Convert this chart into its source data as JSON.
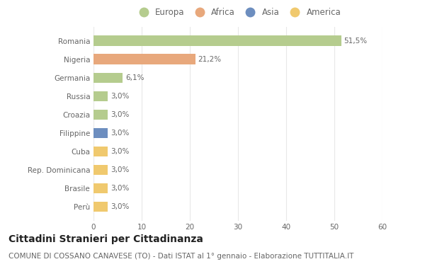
{
  "categories": [
    "Romania",
    "Nigeria",
    "Germania",
    "Russia",
    "Croazia",
    "Filippine",
    "Cuba",
    "Rep. Dominicana",
    "Brasile",
    "Perù"
  ],
  "values": [
    51.5,
    21.2,
    6.1,
    3.0,
    3.0,
    3.0,
    3.0,
    3.0,
    3.0,
    3.0
  ],
  "labels": [
    "51,5%",
    "21,2%",
    "6,1%",
    "3,0%",
    "3,0%",
    "3,0%",
    "3,0%",
    "3,0%",
    "3,0%",
    "3,0%"
  ],
  "bar_colors": [
    "#b5cc8e",
    "#e8a87c",
    "#b5cc8e",
    "#b5cc8e",
    "#b5cc8e",
    "#6d8ebf",
    "#f0c96e",
    "#f0c96e",
    "#f0c96e",
    "#f0c96e"
  ],
  "legend_labels": [
    "Europa",
    "Africa",
    "Asia",
    "America"
  ],
  "legend_colors": [
    "#b5cc8e",
    "#e8a87c",
    "#6d8ebf",
    "#f0c96e"
  ],
  "title": "Cittadini Stranieri per Cittadinanza",
  "subtitle": "COMUNE DI COSSANO CANAVESE (TO) - Dati ISTAT al 1° gennaio - Elaborazione TUTTITALIA.IT",
  "xlim": [
    0,
    60
  ],
  "xticks": [
    0,
    10,
    20,
    30,
    40,
    50,
    60
  ],
  "background_color": "#ffffff",
  "grid_color": "#e8e8e8",
  "title_fontsize": 10,
  "subtitle_fontsize": 7.5,
  "label_fontsize": 7.5,
  "tick_fontsize": 7.5,
  "legend_fontsize": 8.5,
  "bar_height": 0.55
}
